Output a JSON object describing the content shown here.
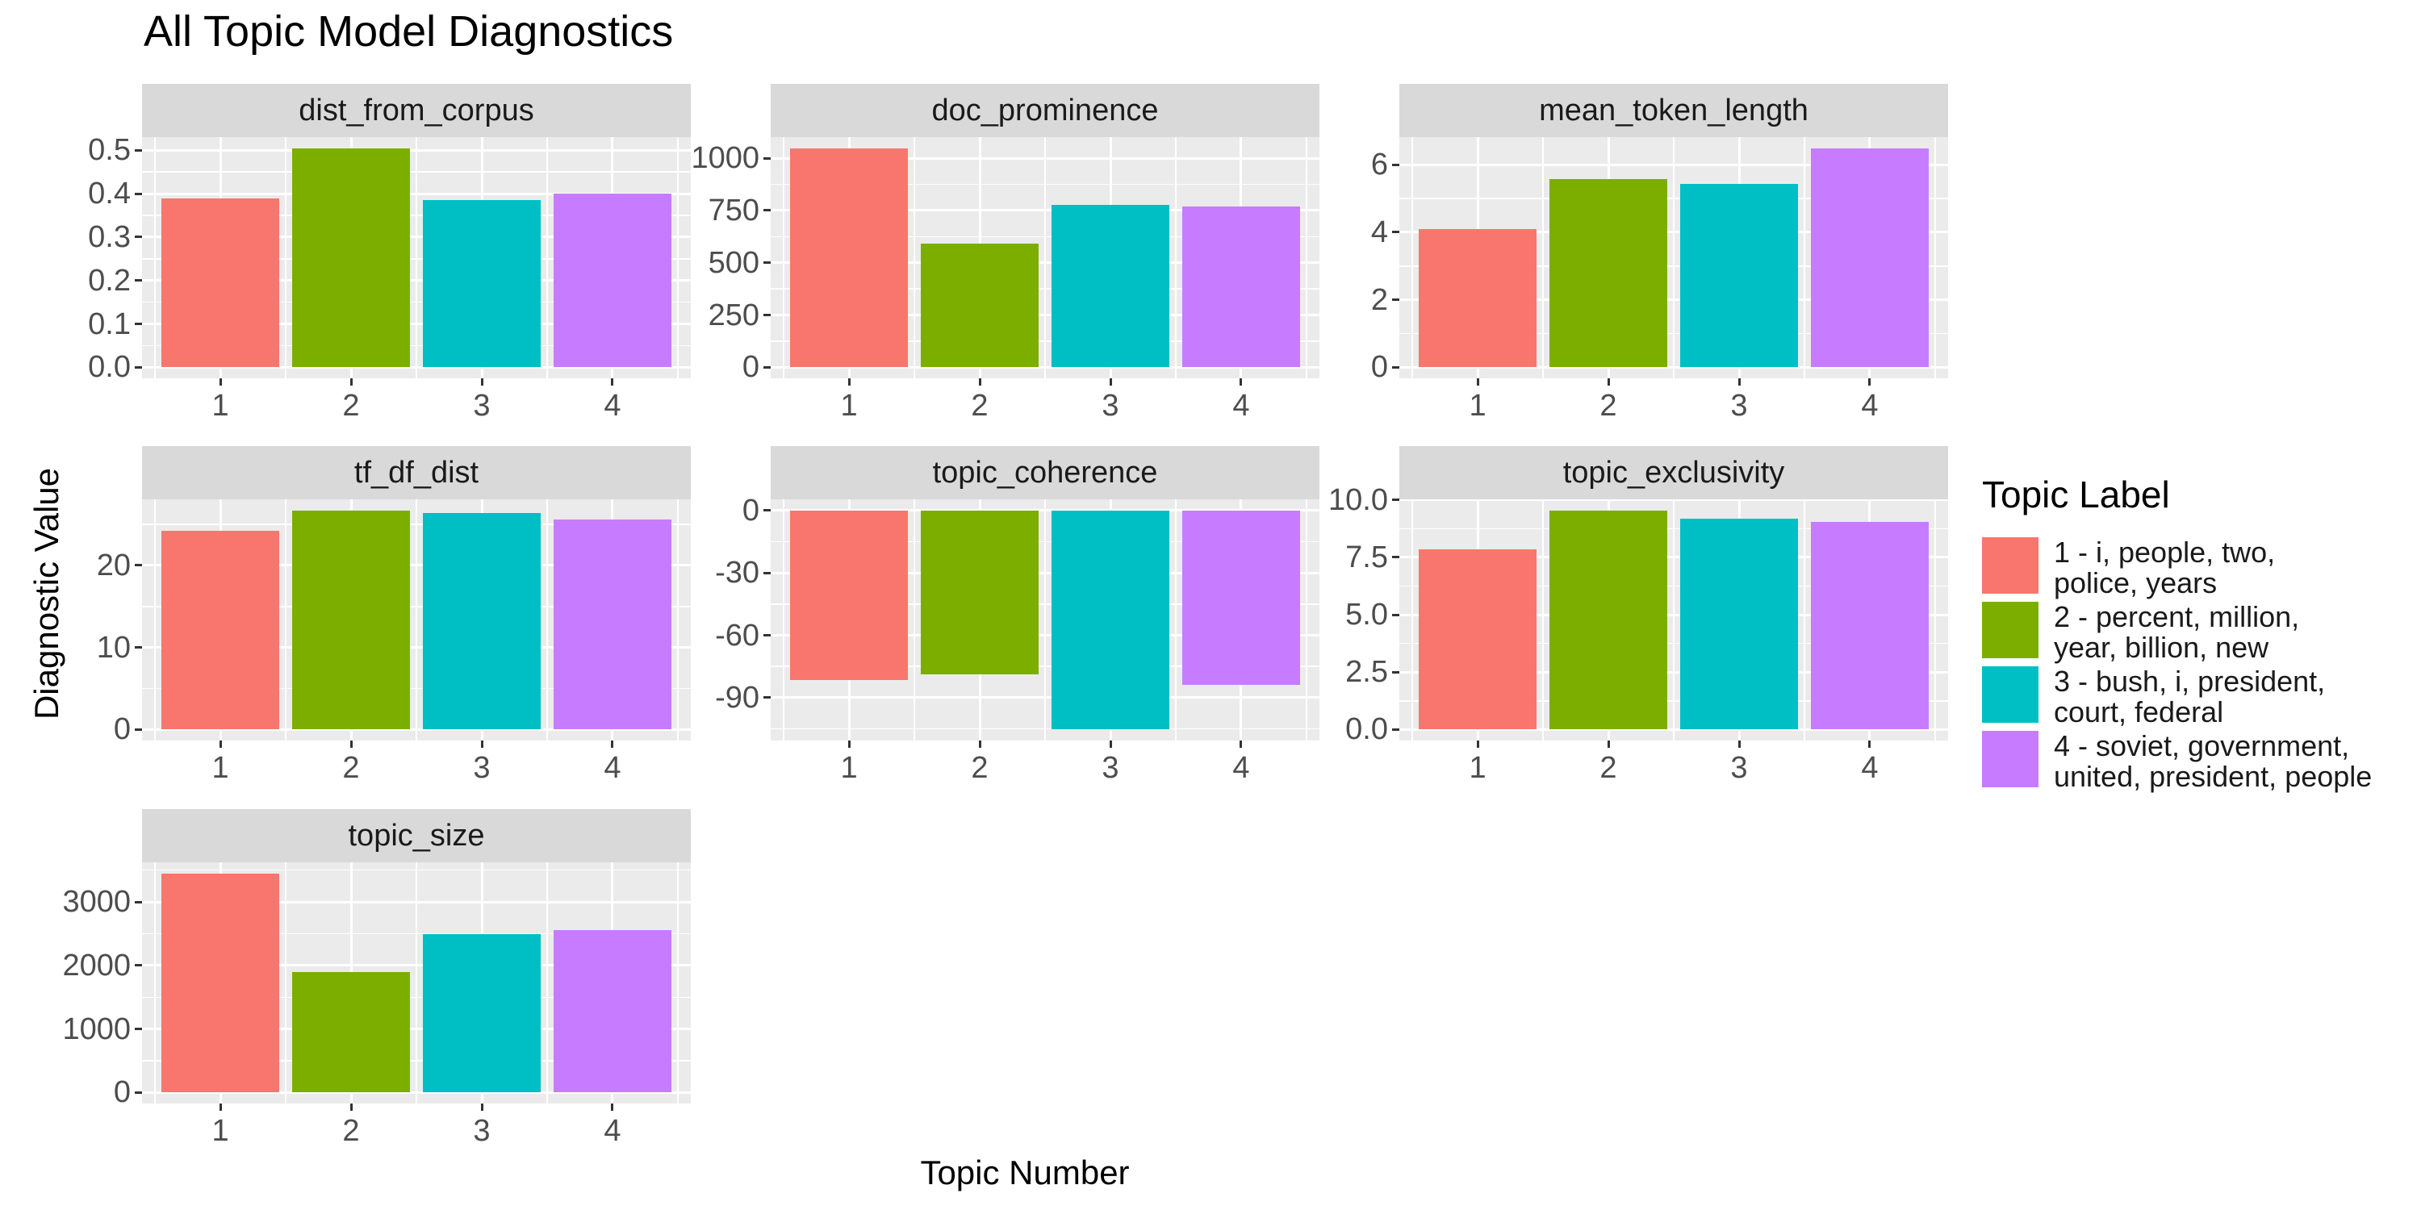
{
  "title": "All Topic Model Diagnostics",
  "axis": {
    "x_label": "Topic Number",
    "y_label": "Diagnostic Value"
  },
  "legend": {
    "title": "Topic Label",
    "items": [
      {
        "label": "1 - i, people, two, police, years",
        "lines": [
          "1 - i, people, two,",
          "police, years"
        ],
        "color": "#F8766D"
      },
      {
        "label": "2 - percent, million, year, billion, new",
        "lines": [
          "2 - percent, million,",
          "year, billion, new"
        ],
        "color": "#7CAE00"
      },
      {
        "label": "3 - bush, i, president, court, federal",
        "lines": [
          "3 - bush, i, president,",
          "court, federal"
        ],
        "color": "#00BFC4"
      },
      {
        "label": "4 - soviet, government, united, president, people",
        "lines": [
          "4 - soviet, government,",
          "united, president, people"
        ],
        "color": "#C77CFF"
      }
    ]
  },
  "colors": {
    "bars": [
      "#F8766D",
      "#7CAE00",
      "#00BFC4",
      "#C77CFF"
    ],
    "panel_background": "#EBEBEB",
    "strip_background": "#D9D9D9",
    "gridline": "#FFFFFF",
    "tick_mark": "#333333",
    "tick_label": "#4D4D4D"
  },
  "chart_data": {
    "type": "bar",
    "title": "All Topic Model Diagnostics",
    "xlabel": "Topic Number",
    "ylabel": "Diagnostic Value",
    "categories": [
      "1",
      "2",
      "3",
      "4"
    ],
    "legend_position": "right",
    "grid": true,
    "facets": [
      {
        "name": "dist_from_corpus",
        "values": [
          0.39,
          0.505,
          0.385,
          0.4
        ],
        "ticks": [
          0,
          0.1,
          0.2,
          0.3,
          0.4,
          0.5
        ],
        "tick_labels": [
          "0.0",
          "0.1",
          "0.2",
          "0.3",
          "0.4",
          "0.5"
        ]
      },
      {
        "name": "doc_prominence",
        "values": [
          1048,
          590,
          778,
          768
        ],
        "ticks": [
          0,
          250,
          500,
          750,
          1000
        ],
        "tick_labels": [
          "0",
          "250",
          "500",
          "750",
          "1000"
        ]
      },
      {
        "name": "mean_token_length",
        "values": [
          4.1,
          5.58,
          5.42,
          6.49
        ],
        "ticks": [
          0,
          2,
          4,
          6
        ],
        "tick_labels": [
          "0",
          "2",
          "4",
          "6"
        ]
      },
      {
        "name": "tf_df_dist",
        "values": [
          24.2,
          26.7,
          26.4,
          25.6
        ],
        "ticks": [
          0,
          10,
          20
        ],
        "tick_labels": [
          "0",
          "10",
          "20"
        ]
      },
      {
        "name": "topic_coherence",
        "values": [
          -81.5,
          -79,
          -105.3,
          -84
        ],
        "ticks": [
          0,
          -30,
          -60,
          -90
        ],
        "tick_labels": [
          "0",
          "-30",
          "-60",
          "-90"
        ]
      },
      {
        "name": "topic_exclusivity",
        "values": [
          7.85,
          9.55,
          9.2,
          9.05
        ],
        "ticks": [
          0,
          2.5,
          5,
          7.5,
          10
        ],
        "tick_labels": [
          "0.0",
          "2.5",
          "5.0",
          "7.5",
          "10.0"
        ]
      },
      {
        "name": "topic_size",
        "values": [
          3450,
          1900,
          2490,
          2555
        ],
        "ticks": [
          0,
          1000,
          2000,
          3000
        ],
        "tick_labels": [
          "0",
          "1000",
          "2000",
          "3000"
        ]
      }
    ]
  }
}
